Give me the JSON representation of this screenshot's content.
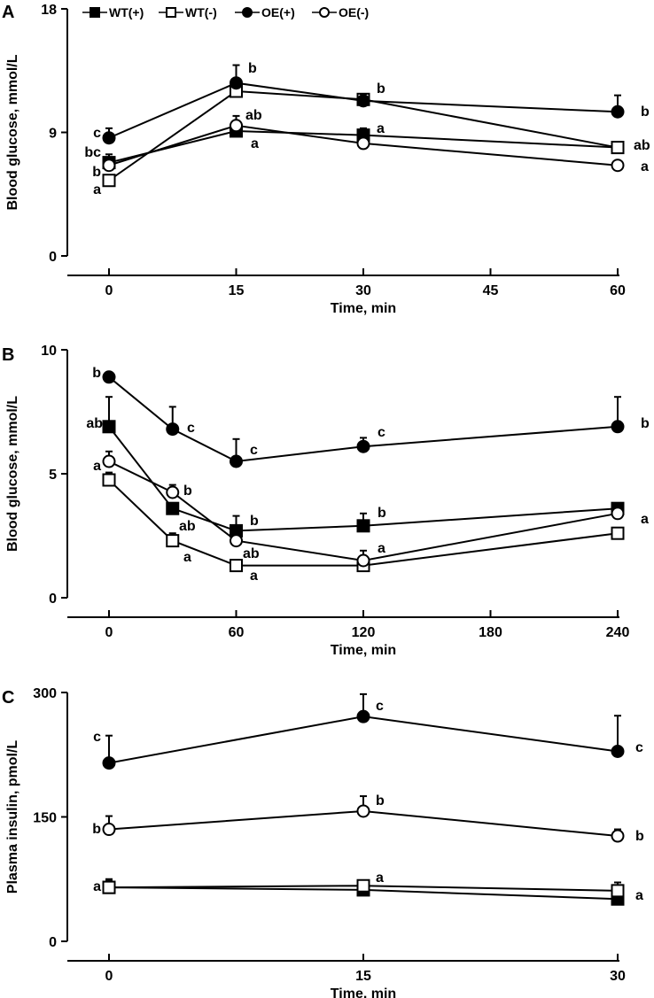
{
  "legend": [
    {
      "label": "WT(+)",
      "marker": "square-filled"
    },
    {
      "label": "WT(-)",
      "marker": "square-open"
    },
    {
      "label": "OE(+)",
      "marker": "circle-filled"
    },
    {
      "label": "OE(-)",
      "marker": "circle-open"
    }
  ],
  "chart_data": [
    {
      "panel": "A",
      "type": "line",
      "xlabel": "Time, min",
      "ylabel": "Blood glucose, mmol/L",
      "xlim": [
        0,
        60
      ],
      "ylim": [
        0,
        18
      ],
      "xticks": [
        0,
        15,
        30,
        45,
        60
      ],
      "yticks": [
        0,
        9,
        18
      ],
      "x": [
        0,
        15,
        30,
        60
      ],
      "series": [
        {
          "name": "WT(+)",
          "marker": "square-filled",
          "values": [
            6.8,
            9.1,
            8.8,
            7.9
          ],
          "err": [
            0.6,
            0.4,
            0.5,
            0.4
          ],
          "letters": [
            "bc",
            "a",
            "a",
            "ab"
          ]
        },
        {
          "name": "WT(-)",
          "marker": "square-open",
          "values": [
            5.5,
            12.0,
            11.4,
            7.9
          ],
          "err": [
            0.3,
            0.3,
            0.3,
            0.3
          ],
          "letters": [
            "a",
            "",
            "",
            ""
          ]
        },
        {
          "name": "OE(+)",
          "marker": "circle-filled",
          "values": [
            8.6,
            12.6,
            11.3,
            10.5
          ],
          "err": [
            0.7,
            1.3,
            0.5,
            1.2
          ],
          "letters": [
            "c",
            "b",
            "b",
            "b"
          ]
        },
        {
          "name": "OE(-)",
          "marker": "circle-open",
          "values": [
            6.6,
            9.5,
            8.2,
            6.6
          ],
          "err": [
            0.3,
            0.7,
            0.2,
            0.3
          ],
          "letters": [
            "b",
            "ab",
            "",
            "a"
          ]
        }
      ]
    },
    {
      "panel": "B",
      "type": "line",
      "xlabel": "Time, min",
      "ylabel": "Blood glucose, mmol/L",
      "xlim": [
        0,
        240
      ],
      "ylim": [
        0,
        10
      ],
      "xticks": [
        0,
        60,
        120,
        180,
        240
      ],
      "yticks": [
        0,
        5,
        10
      ],
      "x": [
        0,
        30,
        60,
        120,
        240
      ],
      "series": [
        {
          "name": "WT(+)",
          "marker": "square-filled",
          "values": [
            6.9,
            3.6,
            2.7,
            2.9,
            3.6
          ],
          "err": [
            1.2,
            0.2,
            0.6,
            0.5,
            0.2
          ],
          "letters": [
            "ab",
            "ab",
            "b",
            "b",
            ""
          ]
        },
        {
          "name": "WT(-)",
          "marker": "square-open",
          "values": [
            4.75,
            2.3,
            1.3,
            1.3,
            2.6
          ],
          "err": [
            0.3,
            0.3,
            0.1,
            0.1,
            0.2
          ],
          "letters": [
            "",
            "a",
            "a",
            "",
            ""
          ]
        },
        {
          "name": "OE(+)",
          "marker": "circle-filled",
          "values": [
            8.9,
            6.8,
            5.5,
            6.1,
            6.9
          ],
          "err": [
            0.1,
            0.9,
            0.9,
            0.35,
            1.2
          ],
          "letters": [
            "b",
            "c",
            "c",
            "c",
            "b"
          ]
        },
        {
          "name": "OE(-)",
          "marker": "circle-open",
          "values": [
            5.5,
            4.25,
            2.3,
            1.5,
            3.4
          ],
          "err": [
            0.4,
            0.3,
            0.2,
            0.4,
            0.3
          ],
          "letters": [
            "a",
            "b",
            "ab",
            "a",
            "a"
          ]
        }
      ]
    },
    {
      "panel": "C",
      "type": "line",
      "xlabel": "Time, min",
      "ylabel": "Plasma insulin, pmol/L",
      "xlim": [
        0,
        30
      ],
      "ylim": [
        0,
        300
      ],
      "xticks": [
        0,
        15,
        30
      ],
      "yticks": [
        0,
        150,
        300
      ],
      "x": [
        0,
        15,
        30
      ],
      "series": [
        {
          "name": "WT(+)",
          "marker": "square-filled",
          "values": [
            65,
            62,
            51
          ],
          "err": [
            10,
            6,
            8
          ],
          "letters": [
            "a",
            "",
            "a"
          ]
        },
        {
          "name": "WT(-)",
          "marker": "square-open",
          "values": [
            65,
            67,
            61
          ],
          "err": [
            8,
            6,
            10
          ],
          "letters": [
            "",
            "a",
            ""
          ]
        },
        {
          "name": "OE(+)",
          "marker": "circle-filled",
          "values": [
            215,
            271,
            229
          ],
          "err": [
            33,
            27,
            43
          ],
          "letters": [
            "c",
            "c",
            "c"
          ]
        },
        {
          "name": "OE(-)",
          "marker": "circle-open",
          "values": [
            135,
            157,
            127
          ],
          "err": [
            16,
            18,
            8
          ],
          "letters": [
            "b",
            "b",
            "b"
          ]
        }
      ]
    }
  ]
}
